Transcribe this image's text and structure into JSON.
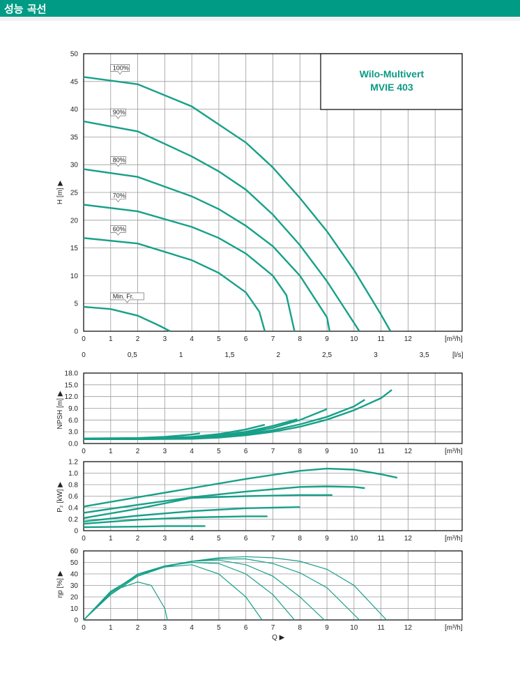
{
  "header": {
    "title": "성능 곡선"
  },
  "model_box": {
    "line1": "Wilo-Multivert",
    "line2": "MVIE 403"
  },
  "colors": {
    "brand": "#009b85",
    "curve": "#17a088"
  },
  "chart_data": [
    {
      "type": "line",
      "ylabel": "H [m] ▶",
      "xlabel": "[m³/h]",
      "secondary_x_label": "[l/s]",
      "secondary_x_ticks": [
        "0",
        "0,5",
        "1",
        "1,5",
        "2",
        "2,5",
        "3",
        "3,5"
      ],
      "ylim": [
        0,
        50
      ],
      "xlim": [
        0,
        14
      ],
      "yticks": [
        0,
        5,
        10,
        15,
        20,
        25,
        30,
        35,
        40,
        45,
        50
      ],
      "xticks": [
        0,
        1,
        2,
        3,
        4,
        5,
        6,
        7,
        8,
        9,
        10,
        11,
        12
      ],
      "series": [
        {
          "name": "100%",
          "x": [
            0,
            2,
            4,
            6,
            7,
            8,
            9,
            10,
            11,
            11.35
          ],
          "y": [
            45.8,
            44.5,
            40.5,
            34,
            29.5,
            24,
            18,
            11,
            3,
            0
          ]
        },
        {
          "name": "90%",
          "x": [
            0,
            2,
            4,
            5,
            6,
            7,
            8,
            9,
            10,
            10.2
          ],
          "y": [
            37.8,
            36,
            31.5,
            28.8,
            25.5,
            21,
            15.5,
            9,
            1.5,
            0
          ]
        },
        {
          "name": "80%",
          "x": [
            0,
            2,
            4,
            5,
            6,
            7,
            8,
            9,
            9.1
          ],
          "y": [
            29.2,
            27.8,
            24.3,
            22,
            19,
            15.3,
            10,
            2.5,
            0
          ]
        },
        {
          "name": "70%",
          "x": [
            0,
            2,
            4,
            5,
            6,
            7,
            7.5,
            7.8
          ],
          "y": [
            22.8,
            21.6,
            18.8,
            16.8,
            14,
            10,
            6.5,
            0
          ]
        },
        {
          "name": "60%",
          "x": [
            0,
            2,
            4,
            5,
            6,
            6.5,
            6.7
          ],
          "y": [
            16.8,
            15.8,
            12.8,
            10.5,
            7,
            3.5,
            0
          ]
        },
        {
          "name": "Min. Fr.",
          "x": [
            0,
            1,
            2,
            2.8,
            3.2
          ],
          "y": [
            4.4,
            4,
            2.8,
            1,
            0
          ]
        }
      ]
    },
    {
      "type": "line",
      "ylabel": "NPSH [m] ▶",
      "xlabel": "[m³/h]",
      "ylim": [
        0,
        18
      ],
      "xlim": [
        0,
        14
      ],
      "ytick_labels": [
        "0.0",
        "3.0",
        "6.0",
        "9.0",
        "12.0",
        "15.0",
        "18.0"
      ],
      "yticks": [
        0,
        3,
        6,
        9,
        12,
        15,
        18
      ],
      "xticks": [
        0,
        1,
        2,
        3,
        4,
        5,
        6,
        7,
        8,
        9,
        10,
        11,
        12
      ],
      "series": [
        {
          "x": [
            0,
            2,
            3,
            4,
            4.3
          ],
          "y": [
            1.3,
            1.4,
            1.7,
            2.3,
            2.6
          ]
        },
        {
          "x": [
            0,
            2,
            4,
            5,
            6,
            6.7
          ],
          "y": [
            1.2,
            1.3,
            1.7,
            2.4,
            3.6,
            4.8
          ]
        },
        {
          "x": [
            0,
            2,
            4,
            5,
            6,
            7,
            7.9
          ],
          "y": [
            1.2,
            1.2,
            1.5,
            2.1,
            3,
            4.5,
            6.2
          ]
        },
        {
          "x": [
            0,
            2,
            4,
            5,
            6,
            7,
            8,
            9
          ],
          "y": [
            1.1,
            1.2,
            1.4,
            1.9,
            2.7,
            4,
            6,
            8.8
          ]
        },
        {
          "x": [
            0,
            2,
            4,
            5,
            6,
            7,
            8,
            9,
            10,
            10.4
          ],
          "y": [
            1.1,
            1.1,
            1.3,
            1.7,
            2.4,
            3.4,
            4.9,
            6.8,
            9.5,
            11.2
          ]
        },
        {
          "x": [
            0,
            2,
            4,
            5,
            6,
            7,
            8,
            9,
            10,
            11,
            11.4
          ],
          "y": [
            1.1,
            1.1,
            1.2,
            1.5,
            2.1,
            3,
            4.3,
            6.1,
            8.5,
            11.6,
            13.7
          ]
        }
      ]
    },
    {
      "type": "line",
      "ylabel": "P₂ [kW] ▶",
      "xlabel": "[m³/h]",
      "ylim": [
        0,
        1.2
      ],
      "xlim": [
        0,
        14
      ],
      "yticks": [
        0,
        0.2,
        0.4,
        0.6,
        0.8,
        1.0,
        1.2
      ],
      "ytick_labels": [
        "0",
        "0.2",
        "0.4",
        "0.6",
        "0.8",
        "1.0",
        "1.2"
      ],
      "xticks": [
        0,
        1,
        2,
        3,
        4,
        5,
        6,
        7,
        8,
        9,
        10,
        11,
        12
      ],
      "series": [
        {
          "x": [
            0,
            2,
            4,
            6,
            8,
            9,
            10,
            11,
            11.6
          ],
          "y": [
            0.42,
            0.58,
            0.74,
            0.9,
            1.04,
            1.08,
            1.06,
            0.98,
            0.92
          ]
        },
        {
          "x": [
            0,
            2,
            4,
            6,
            8,
            9,
            10,
            10.4
          ],
          "y": [
            0.31,
            0.45,
            0.58,
            0.68,
            0.76,
            0.77,
            0.76,
            0.74
          ]
        },
        {
          "x": [
            0,
            2,
            4,
            6,
            8,
            9.2
          ],
          "y": [
            0.22,
            0.38,
            0.57,
            0.6,
            0.62,
            0.62
          ]
        },
        {
          "x": [
            0,
            2,
            4,
            6,
            7,
            8
          ],
          "y": [
            0.16,
            0.26,
            0.34,
            0.39,
            0.4,
            0.41
          ]
        },
        {
          "x": [
            0,
            2,
            4,
            6,
            6.8
          ],
          "y": [
            0.12,
            0.19,
            0.23,
            0.25,
            0.25
          ]
        },
        {
          "x": [
            0,
            2,
            3,
            4.5
          ],
          "y": [
            0.06,
            0.07,
            0.08,
            0.08
          ]
        }
      ]
    },
    {
      "type": "line",
      "ylabel": "ηp [%] ▶",
      "xlabel": "[m³/h]",
      "bottom_label": "Q ▶",
      "ylim": [
        0,
        60
      ],
      "xlim": [
        0,
        14
      ],
      "yticks": [
        0,
        10,
        20,
        30,
        40,
        50,
        60
      ],
      "xticks": [
        0,
        1,
        2,
        3,
        4,
        5,
        6,
        7,
        8,
        9,
        10,
        11,
        12
      ],
      "series": [
        {
          "x": [
            0,
            1,
            2,
            2.5,
            3,
            3.1
          ],
          "y": [
            0,
            25,
            33,
            30,
            10,
            0
          ]
        },
        {
          "x": [
            0,
            1,
            2,
            3,
            4,
            5,
            6,
            6.6
          ],
          "y": [
            0,
            25,
            39,
            46,
            48,
            40,
            20,
            0
          ]
        },
        {
          "x": [
            0,
            1,
            2,
            3,
            4,
            5,
            6,
            7,
            7.8
          ],
          "y": [
            0,
            24,
            40,
            47,
            50,
            49,
            40,
            22,
            0
          ]
        },
        {
          "x": [
            0,
            1,
            2,
            3,
            4,
            5,
            6,
            7,
            8,
            8.9
          ],
          "y": [
            0,
            23,
            39,
            47,
            51,
            52,
            48,
            38,
            20,
            0
          ]
        },
        {
          "x": [
            0,
            1,
            2,
            3,
            4,
            5,
            6,
            7,
            8,
            9,
            10.2
          ],
          "y": [
            0,
            22,
            38,
            46,
            51,
            53,
            53,
            49,
            41,
            28,
            0
          ]
        },
        {
          "x": [
            0,
            1,
            2,
            3,
            4,
            5,
            6,
            7,
            8,
            9,
            10,
            11.2
          ],
          "y": [
            0,
            22,
            38,
            46,
            51,
            54,
            55,
            54,
            51,
            44,
            30,
            0
          ]
        }
      ]
    }
  ]
}
